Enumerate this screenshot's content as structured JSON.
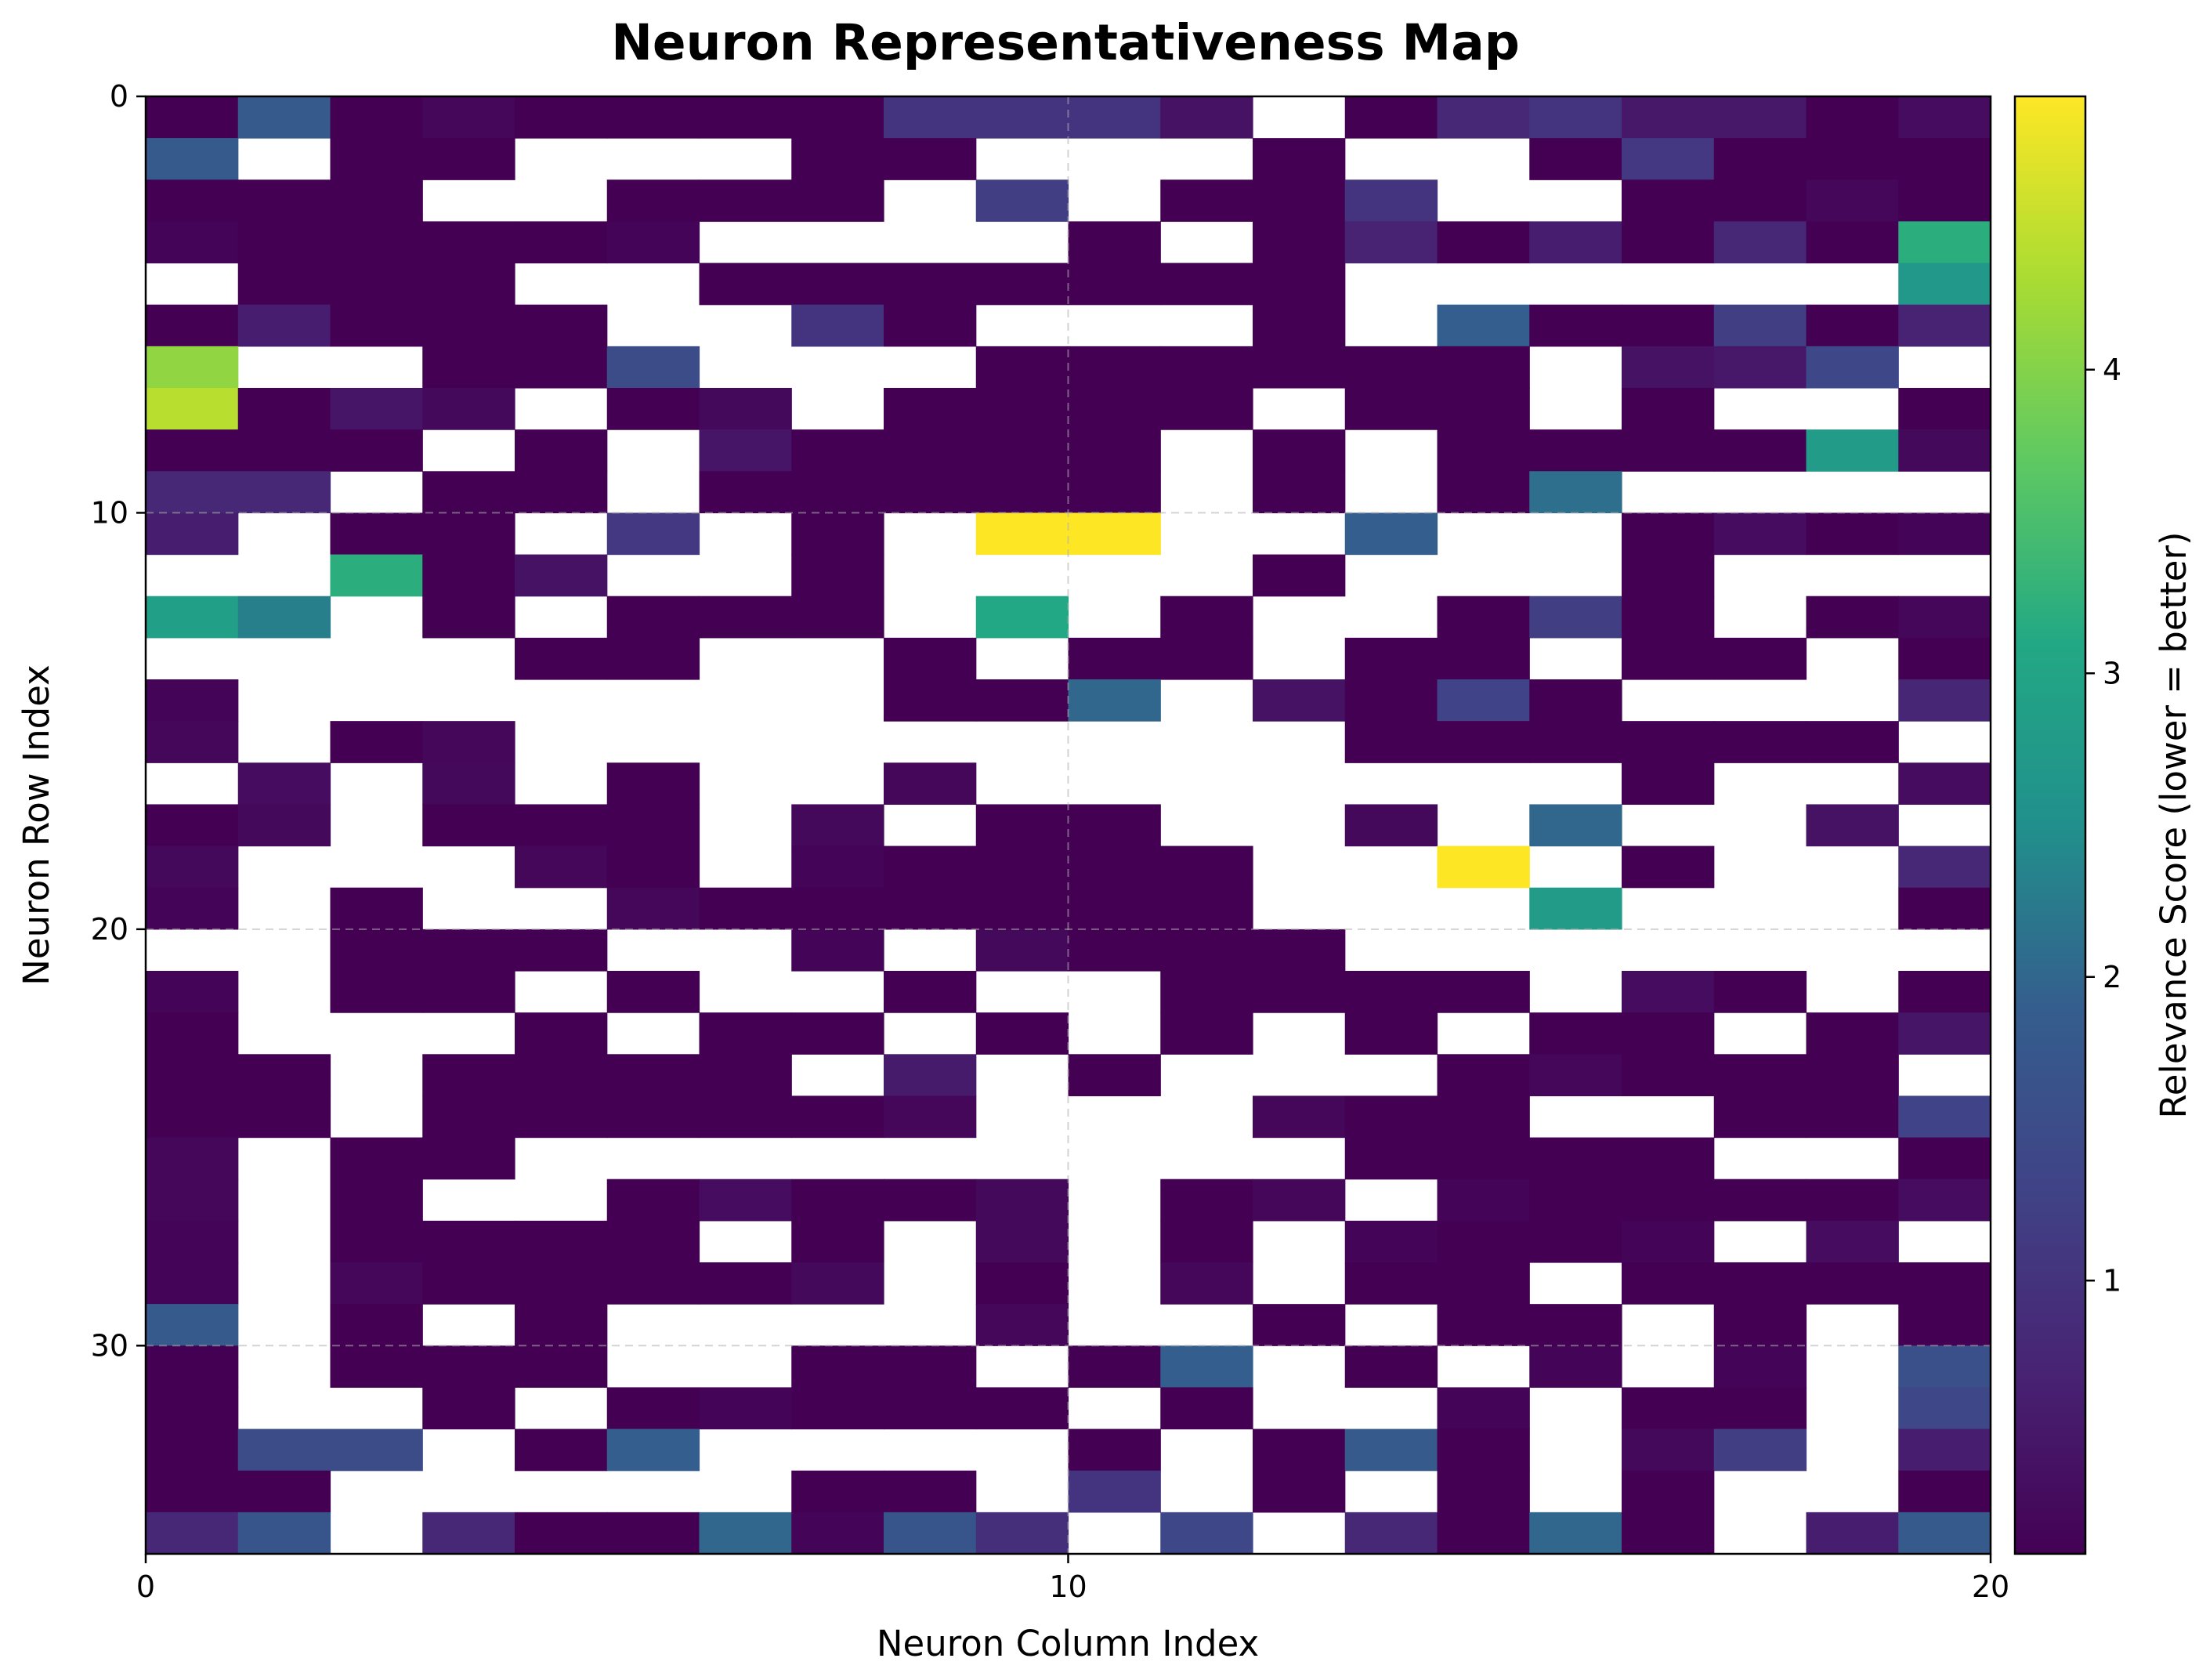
{
  "chart_data": {
    "type": "heatmap",
    "title": "Neuron Representativeness Map",
    "xlabel": "Neuron Column Index",
    "ylabel": "Neuron Row Index",
    "xlim": [
      0,
      20
    ],
    "ylim": [
      35,
      0
    ],
    "xticks": [
      0,
      10,
      20
    ],
    "yticks": [
      0,
      10,
      20,
      30
    ],
    "grid": true,
    "colorbar": {
      "label": "Relevance Score (lower = better)",
      "range": [
        0.1,
        4.9
      ],
      "ticks": [
        1,
        2,
        3,
        4
      ],
      "colormap": "viridis"
    },
    "empty_value": "_",
    "rows": [
      [
        0.1,
        1.8,
        0.1,
        0.2,
        0.1,
        0.1,
        0.1,
        0.1,
        1.0,
        1.0,
        1.0,
        0.4,
        "_",
        0.1,
        0.8,
        1.0,
        0.5,
        0.5,
        0.1,
        0.3
      ],
      [
        1.8,
        "_",
        0.1,
        0.1,
        "_",
        "_",
        "_",
        0.1,
        0.1,
        "_",
        "_",
        "_",
        0.1,
        "_",
        "_",
        0.1,
        1.1,
        0.1,
        0.1,
        0.1
      ],
      [
        0.1,
        0.1,
        0.1,
        "_",
        "_",
        0.1,
        0.1,
        0.1,
        "_",
        1.2,
        "_",
        0.1,
        0.1,
        1.0,
        "_",
        "_",
        0.1,
        0.1,
        0.2,
        0.1
      ],
      [
        0.15,
        0.1,
        0.1,
        0.1,
        0.1,
        0.15,
        "_",
        "_",
        "_",
        "_",
        0.1,
        "_",
        0.1,
        0.7,
        0.1,
        0.6,
        0.1,
        0.8,
        0.1,
        3.2
      ],
      [
        "_",
        0.1,
        0.1,
        0.1,
        "_",
        "_",
        0.1,
        0.1,
        0.1,
        0.1,
        0.1,
        0.1,
        0.1,
        "_",
        "_",
        "_",
        "_",
        "_",
        "_",
        2.7
      ],
      [
        0.1,
        0.6,
        0.1,
        0.1,
        0.1,
        "_",
        "_",
        1.0,
        0.1,
        "_",
        "_",
        "_",
        0.1,
        "_",
        1.9,
        0.1,
        0.1,
        1.2,
        0.1,
        0.7
      ],
      [
        4.1,
        "_",
        "_",
        0.1,
        0.1,
        1.5,
        "_",
        "_",
        "_",
        0.1,
        0.1,
        0.1,
        0.1,
        0.1,
        0.1,
        "_",
        0.4,
        0.5,
        1.4,
        "_"
      ],
      [
        4.4,
        0.1,
        0.45,
        0.25,
        "_",
        0.1,
        0.25,
        "_",
        0.1,
        0.1,
        0.1,
        0.1,
        "_",
        0.1,
        0.1,
        "_",
        0.1,
        "_",
        "_",
        0.1
      ],
      [
        0.1,
        0.1,
        0.1,
        "_",
        0.1,
        "_",
        0.45,
        0.1,
        0.1,
        0.1,
        0.1,
        "_",
        0.1,
        "_",
        0.1,
        0.1,
        0.1,
        0.1,
        2.8,
        0.25
      ],
      [
        0.8,
        0.8,
        "_",
        0.1,
        0.1,
        "_",
        0.1,
        0.1,
        0.1,
        0.1,
        0.1,
        "_",
        0.1,
        "_",
        0.1,
        2.1,
        "_",
        "_",
        "_",
        "_"
      ],
      [
        0.6,
        "_",
        0.1,
        0.1,
        "_",
        1.1,
        "_",
        0.1,
        "_",
        4.9,
        4.9,
        "_",
        "_",
        1.9,
        "_",
        "_",
        0.1,
        0.3,
        0.1,
        0.15
      ],
      [
        "_",
        "_",
        3.2,
        0.1,
        0.4,
        "_",
        "_",
        0.1,
        "_",
        "_",
        "_",
        "_",
        0.1,
        "_",
        "_",
        "_",
        0.1,
        "_",
        "_",
        "_"
      ],
      [
        2.9,
        2.3,
        "_",
        0.1,
        "_",
        0.1,
        0.1,
        0.1,
        "_",
        3.1,
        "_",
        0.1,
        "_",
        "_",
        0.1,
        1.2,
        0.1,
        "_",
        0.1,
        0.2
      ],
      [
        "_",
        "_",
        "_",
        "_",
        0.1,
        0.1,
        "_",
        "_",
        0.1,
        "_",
        0.1,
        0.1,
        "_",
        0.1,
        0.1,
        "_",
        0.1,
        0.1,
        "_",
        0.1
      ],
      [
        0.15,
        "_",
        "_",
        "_",
        "_",
        "_",
        "_",
        "_",
        0.1,
        0.1,
        2.0,
        "_",
        0.4,
        0.1,
        1.3,
        0.1,
        "_",
        "_",
        "_",
        0.75
      ],
      [
        0.2,
        "_",
        0.1,
        0.2,
        "_",
        "_",
        "_",
        "_",
        "_",
        "_",
        "_",
        "_",
        "_",
        0.1,
        0.1,
        0.1,
        0.1,
        0.1,
        0.1,
        "_"
      ],
      [
        "_",
        0.3,
        "_",
        0.25,
        "_",
        0.1,
        "_",
        "_",
        0.2,
        "_",
        "_",
        "_",
        "_",
        "_",
        "_",
        "_",
        0.1,
        "_",
        "_",
        0.3
      ],
      [
        0.1,
        0.25,
        "_",
        0.1,
        0.1,
        0.1,
        "_",
        0.25,
        "_",
        0.1,
        0.1,
        "_",
        "_",
        0.25,
        "_",
        2.0,
        "_",
        "_",
        0.4,
        "_"
      ],
      [
        0.25,
        "_",
        "_",
        "_",
        0.2,
        0.1,
        "_",
        0.15,
        0.1,
        0.1,
        0.1,
        0.1,
        "_",
        "_",
        4.9,
        "_",
        0.1,
        "_",
        "_",
        0.8
      ],
      [
        0.15,
        "_",
        0.1,
        "_",
        "_",
        0.2,
        0.1,
        0.1,
        0.1,
        0.1,
        0.1,
        0.1,
        "_",
        "_",
        "_",
        2.8,
        "_",
        "_",
        "_",
        0.1
      ],
      [
        "_",
        "_",
        0.1,
        0.1,
        0.1,
        "_",
        "_",
        0.15,
        "_",
        0.25,
        0.1,
        0.1,
        0.1,
        "_",
        "_",
        "_",
        "_",
        "_",
        "_",
        "_"
      ],
      [
        0.15,
        "_",
        0.1,
        0.1,
        "_",
        0.1,
        "_",
        "_",
        0.1,
        "_",
        "_",
        0.1,
        0.1,
        0.1,
        0.1,
        "_",
        0.3,
        0.1,
        "_",
        0.1
      ],
      [
        0.1,
        "_",
        "_",
        "_",
        0.1,
        "_",
        0.1,
        0.1,
        "_",
        0.1,
        "_",
        0.1,
        "_",
        0.1,
        "_",
        0.1,
        0.1,
        "_",
        0.1,
        0.45
      ],
      [
        0.1,
        0.1,
        "_",
        0.1,
        0.1,
        0.1,
        0.1,
        "_",
        0.55,
        "_",
        0.1,
        "_",
        "_",
        "_",
        0.1,
        0.2,
        0.1,
        0.1,
        0.1,
        "_"
      ],
      [
        0.1,
        0.1,
        "_",
        0.1,
        0.1,
        0.1,
        0.1,
        0.1,
        0.2,
        "_",
        "_",
        "_",
        0.2,
        0.1,
        0.1,
        "_",
        "_",
        0.1,
        0.1,
        1.3
      ],
      [
        0.2,
        "_",
        0.1,
        0.1,
        "_",
        "_",
        "_",
        "_",
        "_",
        "_",
        "_",
        "_",
        "_",
        0.1,
        0.1,
        0.1,
        0.1,
        "_",
        "_",
        0.1
      ],
      [
        0.2,
        "_",
        0.1,
        "_",
        "_",
        0.1,
        0.3,
        0.1,
        0.1,
        0.25,
        "_",
        0.1,
        0.2,
        "_",
        0.15,
        0.1,
        0.1,
        0.1,
        0.1,
        0.3
      ],
      [
        0.15,
        "_",
        0.1,
        0.1,
        0.1,
        0.1,
        "_",
        0.1,
        "_",
        0.25,
        "_",
        0.1,
        "_",
        0.15,
        0.1,
        0.1,
        0.15,
        "_",
        0.3,
        "_"
      ],
      [
        0.15,
        "_",
        0.2,
        0.1,
        0.1,
        0.1,
        0.1,
        0.25,
        "_",
        0.1,
        "_",
        0.2,
        "_",
        0.1,
        0.1,
        "_",
        0.1,
        0.1,
        0.1,
        0.1
      ],
      [
        1.8,
        "_",
        0.1,
        "_",
        0.1,
        "_",
        "_",
        "_",
        "_",
        0.2,
        "_",
        "_",
        0.1,
        "_",
        0.1,
        0.1,
        "_",
        0.1,
        "_",
        0.1
      ],
      [
        0.1,
        "_",
        0.1,
        0.1,
        0.1,
        "_",
        "_",
        0.1,
        0.1,
        "_",
        0.1,
        1.9,
        "_",
        0.1,
        "_",
        0.15,
        "_",
        0.15,
        "_",
        1.6
      ],
      [
        0.1,
        "_",
        "_",
        0.1,
        "_",
        0.1,
        0.15,
        0.1,
        0.1,
        0.1,
        "_",
        0.1,
        "_",
        "_",
        0.15,
        "_",
        0.1,
        0.1,
        "_",
        1.4
      ],
      [
        0.1,
        1.5,
        1.5,
        "_",
        0.1,
        1.9,
        "_",
        "_",
        "_",
        "_",
        0.1,
        "_",
        0.1,
        1.8,
        0.1,
        "_",
        0.25,
        1.2,
        "_",
        0.6
      ],
      [
        0.1,
        0.1,
        "_",
        "_",
        "_",
        "_",
        "_",
        0.1,
        0.1,
        "_",
        1.0,
        "_",
        0.1,
        "_",
        0.1,
        "_",
        0.1,
        "_",
        "_",
        0.1
      ],
      [
        0.8,
        1.7,
        "_",
        0.8,
        0.1,
        0.1,
        2.0,
        0.15,
        1.7,
        0.9,
        "_",
        1.4,
        "_",
        0.8,
        0.1,
        2.0,
        0.1,
        "_",
        0.6,
        1.8
      ]
    ]
  }
}
